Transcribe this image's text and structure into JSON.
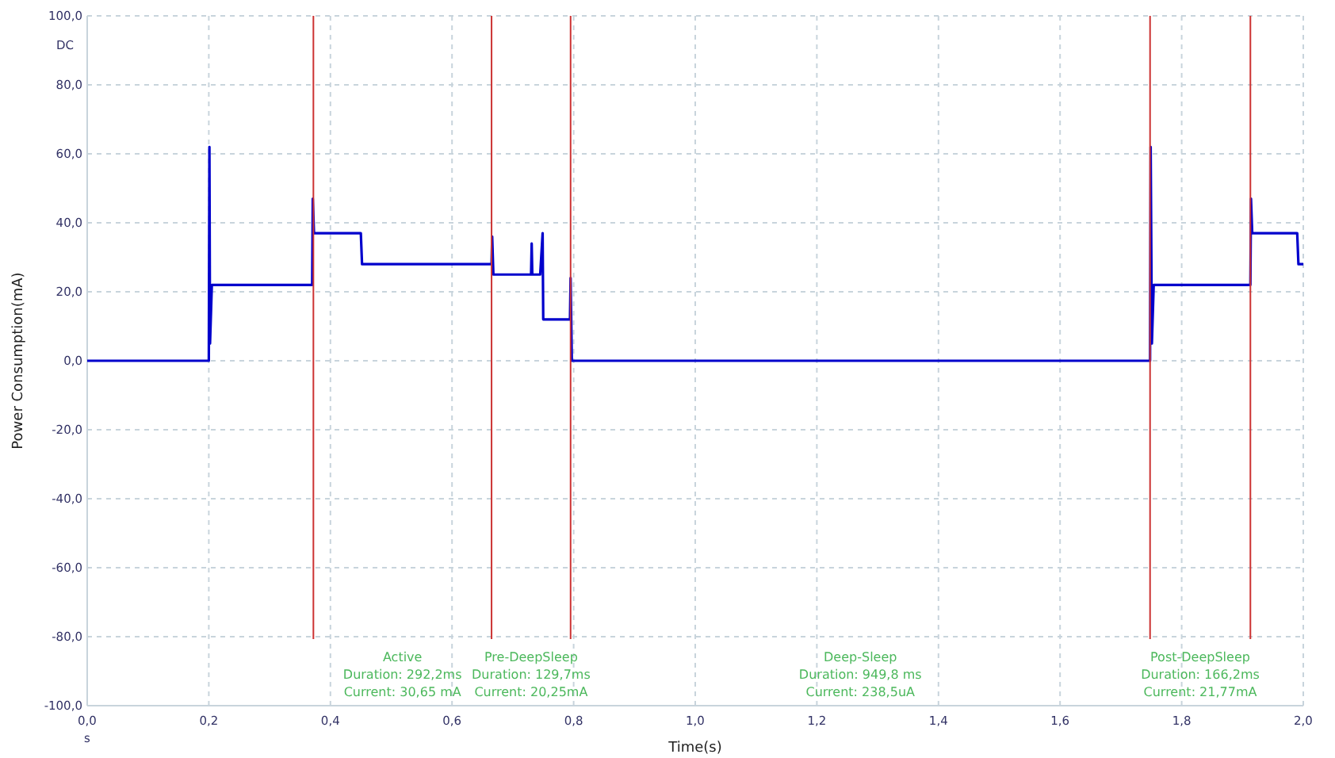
{
  "chart_data": {
    "type": "line",
    "xlabel": "Time(s)",
    "ylabel": "Power Consumption(mA)",
    "xlim": [
      0,
      2
    ],
    "ylim": [
      -100,
      100
    ],
    "xticks": [
      {
        "value": 0,
        "label": "0,0"
      },
      {
        "value": 0.2,
        "label": "0,2"
      },
      {
        "value": 0.4,
        "label": "0,4"
      },
      {
        "value": 0.6,
        "label": "0,6"
      },
      {
        "value": 0.8,
        "label": "0,8"
      },
      {
        "value": 1,
        "label": "1,0"
      },
      {
        "value": 1.2,
        "label": "1,2"
      },
      {
        "value": 1.4,
        "label": "1,4"
      },
      {
        "value": 1.6,
        "label": "1,6"
      },
      {
        "value": 1.8,
        "label": "1,8"
      },
      {
        "value": 2,
        "label": "2,0"
      }
    ],
    "yticks": [
      {
        "value": -100,
        "label": "-100,0"
      },
      {
        "value": -80,
        "label": "-80,0"
      },
      {
        "value": -60,
        "label": "-60,0"
      },
      {
        "value": -40,
        "label": "-40,0"
      },
      {
        "value": -20,
        "label": "-20,0"
      },
      {
        "value": 0,
        "label": "0,0"
      },
      {
        "value": 20,
        "label": "20,0"
      },
      {
        "value": 40,
        "label": "40,0"
      },
      {
        "value": 60,
        "label": "60,0"
      },
      {
        "value": 80,
        "label": "80,0"
      },
      {
        "value": 100,
        "label": "100,0"
      }
    ],
    "grid": true,
    "marker": "none",
    "line_style": "solid",
    "series": [
      {
        "color": "#0000cc",
        "x": [
          0,
          0.2,
          0.201,
          0.202,
          0.205,
          0.37,
          0.371,
          0.373,
          0.45,
          0.452,
          0.665,
          0.666,
          0.668,
          0.73,
          0.731,
          0.732,
          0.745,
          0.749,
          0.75,
          0.752,
          0.794,
          0.795,
          0.797,
          1.748,
          1.749,
          1.751,
          1.754,
          1.913,
          1.914,
          1.916,
          1.99,
          1.992,
          2
        ],
        "values": [
          0,
          0,
          62,
          5,
          22,
          22,
          47,
          37,
          37,
          28,
          28,
          36,
          25,
          25,
          34,
          25,
          25,
          37,
          12,
          12,
          12,
          24,
          0,
          0,
          62,
          5,
          22,
          22,
          47,
          37,
          37,
          28,
          28
        ]
      }
    ],
    "ref_lines": [
      {
        "axis": "x",
        "value": 0.372,
        "color": "#cc3333"
      },
      {
        "axis": "x",
        "value": 0.665,
        "color": "#cc3333"
      },
      {
        "axis": "x",
        "value": 0.795,
        "color": "#cc3333"
      },
      {
        "axis": "x",
        "value": 1.748,
        "color": "#cc3333"
      },
      {
        "axis": "x",
        "value": 1.913,
        "color": "#cc3333"
      }
    ],
    "annotations": [
      "DC",
      "s",
      "Active\nDuration: 292,2ms\nCurrent: 30,65 mA",
      "Pre-DeepSleep\nDuration: 129,7ms\nCurrent: 20,25mA",
      "Deep-Sleep\nDuration: 949,8 ms\nCurrent: 238,5uA",
      "Post-DeepSleep\nDuration: 166,2ms\nCurrent: 21,77mA"
    ]
  }
}
